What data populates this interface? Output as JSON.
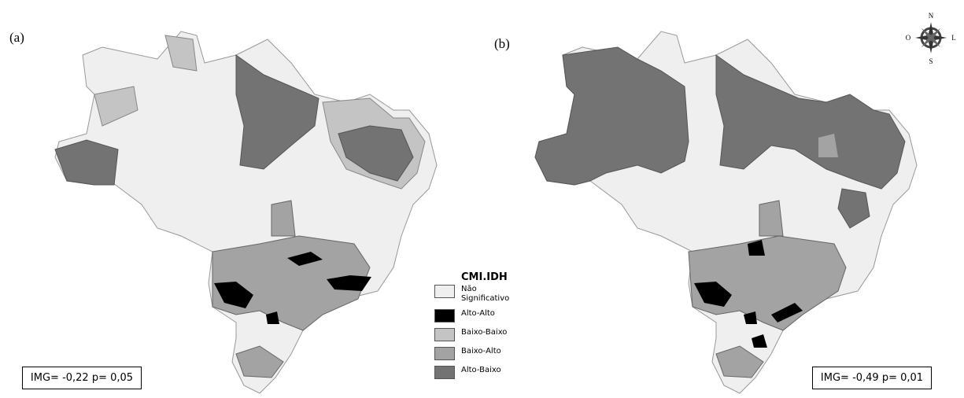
{
  "panels": [
    {
      "label": "(a)",
      "stat": "IMG= -0,22 p= 0,05"
    },
    {
      "label": "(b)",
      "stat": "IMG= -0,49 p= 0,01"
    }
  ],
  "legend": {
    "title": "CMI.IDH",
    "items": [
      {
        "label": "Não Significativo",
        "color": "#efefef"
      },
      {
        "label": "Alto-Alto",
        "color": "#000000"
      },
      {
        "label": "Baixo-Baixo",
        "color": "#c4c4c4"
      },
      {
        "label": "Baixo-Alto",
        "color": "#a3a3a3"
      },
      {
        "label": "Alto-Baixo",
        "color": "#737373"
      }
    ]
  },
  "compass": {
    "north": "N",
    "south": "S",
    "west": "O",
    "east": "L"
  }
}
